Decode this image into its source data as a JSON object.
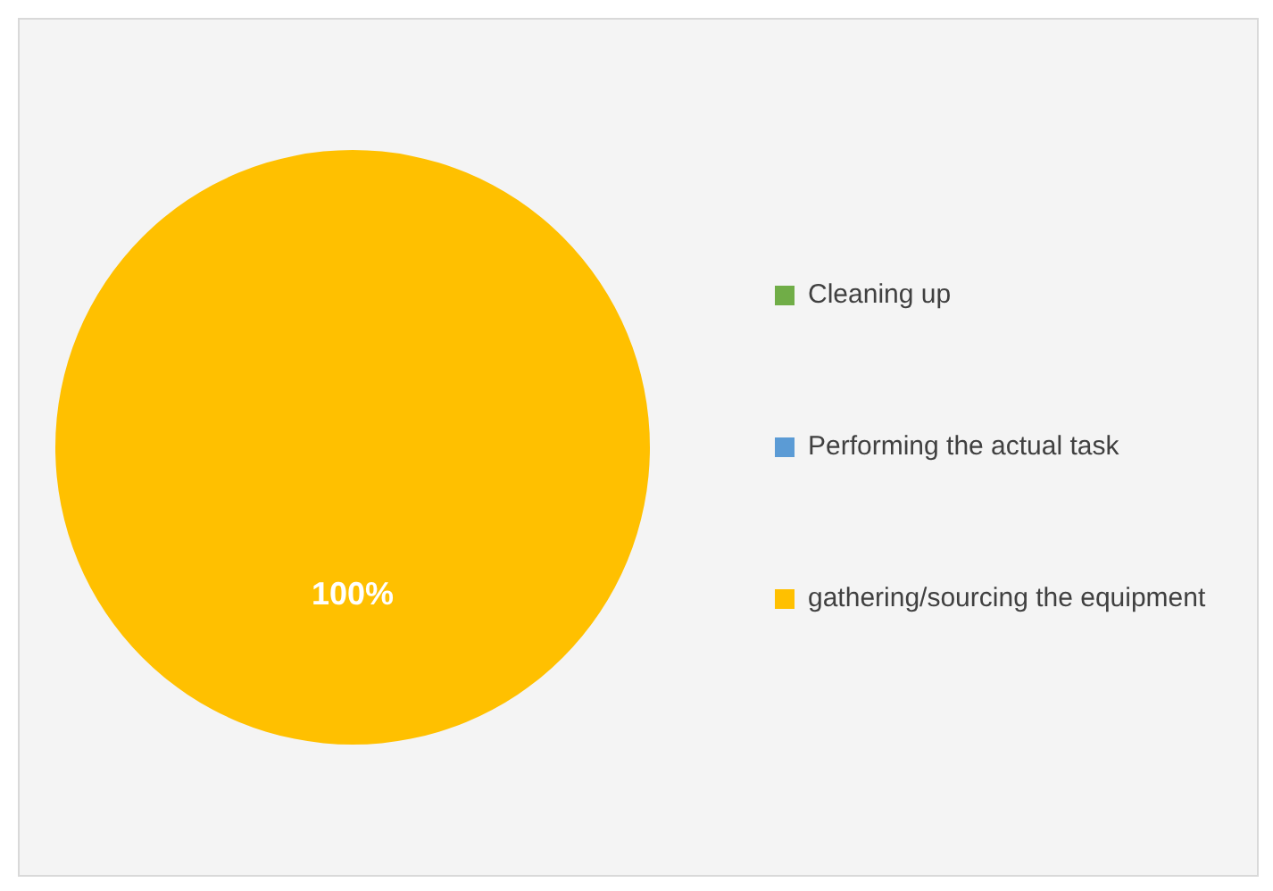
{
  "chart_data": {
    "type": "pie",
    "categories": [
      "Cleaning up",
      "Performing the actual task",
      "gathering/sourcing the equipment"
    ],
    "values": [
      0,
      0,
      100
    ],
    "colors": [
      "#70ad47",
      "#5b9bd5",
      "#ffc000"
    ],
    "value_labels": [
      null,
      null,
      "100%"
    ],
    "legend": "right"
  }
}
